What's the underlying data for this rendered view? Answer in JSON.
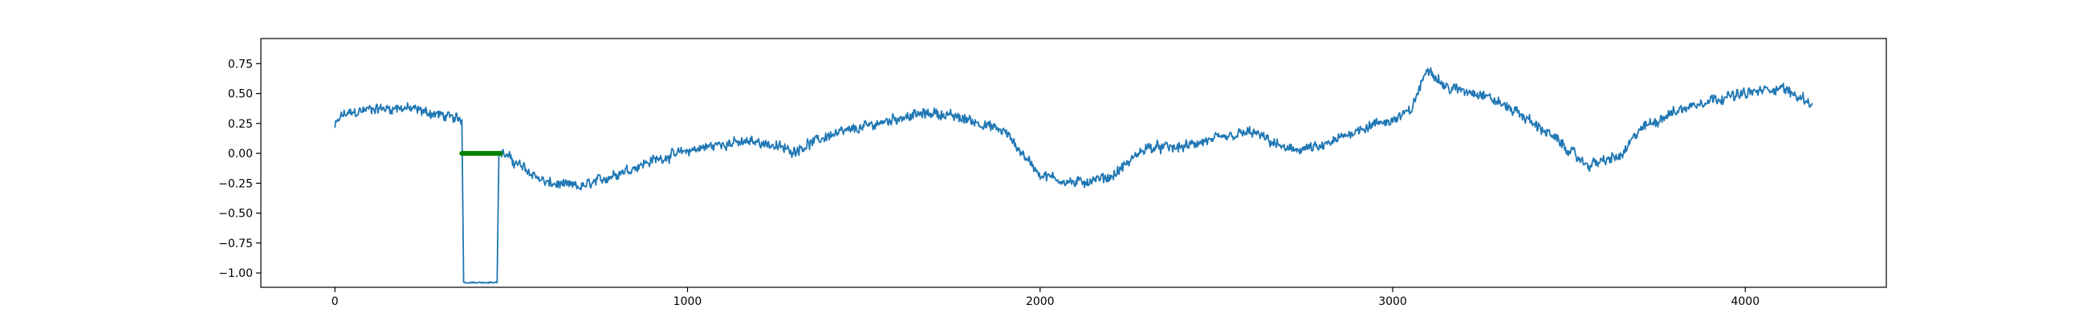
{
  "chart_data": {
    "type": "line",
    "title": "",
    "xlabel": "",
    "ylabel": "",
    "xlim": [
      -210,
      4400
    ],
    "ylim": [
      -1.12,
      0.96
    ],
    "x_ticks": [
      0,
      1000,
      2000,
      3000,
      4000
    ],
    "x_tick_labels": [
      "0",
      "1000",
      "2000",
      "3000",
      "4000"
    ],
    "y_ticks": [
      0.75,
      0.5,
      0.25,
      0.0,
      -0.25,
      -0.5,
      -0.75,
      -1.0
    ],
    "y_tick_labels": [
      "0.75",
      "0.50",
      "0.25",
      "0.00",
      "−0.25",
      "−0.50",
      "−0.75",
      "−1.00"
    ],
    "grid": false,
    "legend": "none",
    "series": [
      {
        "color": "#1f77b4",
        "noise_amplitude": 0.03,
        "trend": [
          [
            0,
            0.22
          ],
          [
            20,
            0.32
          ],
          [
            100,
            0.37
          ],
          [
            200,
            0.38
          ],
          [
            300,
            0.32
          ],
          [
            360,
            0.28
          ],
          [
            365,
            -1.08
          ],
          [
            460,
            -1.08
          ],
          [
            465,
            0.02
          ],
          [
            500,
            -0.05
          ],
          [
            600,
            -0.25
          ],
          [
            700,
            -0.28
          ],
          [
            800,
            -0.17
          ],
          [
            900,
            -0.06
          ],
          [
            1000,
            0.02
          ],
          [
            1100,
            0.08
          ],
          [
            1200,
            0.1
          ],
          [
            1300,
            0.02
          ],
          [
            1400,
            0.15
          ],
          [
            1500,
            0.22
          ],
          [
            1600,
            0.3
          ],
          [
            1700,
            0.34
          ],
          [
            1800,
            0.28
          ],
          [
            1900,
            0.18
          ],
          [
            2000,
            -0.18
          ],
          [
            2100,
            -0.25
          ],
          [
            2200,
            -0.2
          ],
          [
            2250,
            -0.08
          ],
          [
            2300,
            0.05
          ],
          [
            2400,
            0.05
          ],
          [
            2500,
            0.12
          ],
          [
            2600,
            0.18
          ],
          [
            2700,
            0.03
          ],
          [
            2800,
            0.05
          ],
          [
            2900,
            0.2
          ],
          [
            3000,
            0.28
          ],
          [
            3050,
            0.35
          ],
          [
            3100,
            0.72
          ],
          [
            3150,
            0.55
          ],
          [
            3250,
            0.5
          ],
          [
            3350,
            0.35
          ],
          [
            3450,
            0.15
          ],
          [
            3550,
            -0.1
          ],
          [
            3650,
            -0.02
          ],
          [
            3700,
            0.2
          ],
          [
            3800,
            0.35
          ],
          [
            3900,
            0.45
          ],
          [
            4000,
            0.5
          ],
          [
            4100,
            0.55
          ],
          [
            4190,
            0.42
          ]
        ]
      }
    ],
    "highlight_segment": {
      "color": "#008000",
      "x": [
        360,
        470
      ],
      "y": 0.0
    }
  }
}
